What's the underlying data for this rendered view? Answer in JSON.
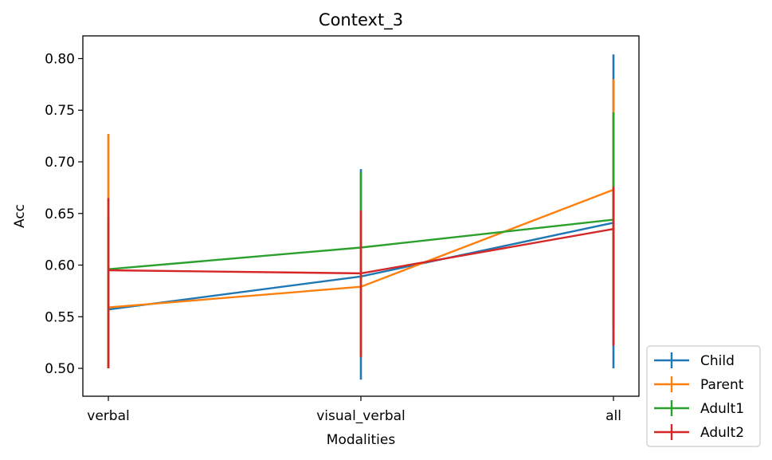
{
  "chart_data": {
    "type": "line",
    "title": "Context_3",
    "xlabel": "Modalities",
    "ylabel": "Acc",
    "categories": [
      "verbal",
      "visual_verbal",
      "all"
    ],
    "ylim": [
      0.473,
      0.822
    ],
    "yticks": [
      "0.50",
      "0.55",
      "0.60",
      "0.65",
      "0.70",
      "0.75",
      "0.80"
    ],
    "error_bars": true,
    "grid": false,
    "legend_position": "lower-right-outside",
    "series": [
      {
        "name": "Child",
        "color": "#1f77b4",
        "values": [
          0.557,
          0.589,
          0.641
        ],
        "err_low": [
          0.5,
          0.489,
          0.5
        ],
        "err_high": [
          0.614,
          0.693,
          0.804
        ]
      },
      {
        "name": "Parent",
        "color": "#ff7f0e",
        "values": [
          0.559,
          0.579,
          0.673
        ],
        "err_low": [
          0.5,
          0.511,
          0.566
        ],
        "err_high": [
          0.727,
          0.647,
          0.78
        ]
      },
      {
        "name": "Adult1",
        "color": "#2ca02c",
        "values": [
          0.596,
          0.617,
          0.644
        ],
        "err_low": [
          0.5,
          0.511,
          0.54
        ],
        "err_high": [
          0.646,
          0.69,
          0.748
        ]
      },
      {
        "name": "Adult2",
        "color": "#d62728",
        "values": [
          0.595,
          0.592,
          0.635
        ],
        "err_low": [
          0.5,
          0.511,
          0.522
        ],
        "err_high": [
          0.665,
          0.653,
          0.676
        ]
      }
    ]
  }
}
